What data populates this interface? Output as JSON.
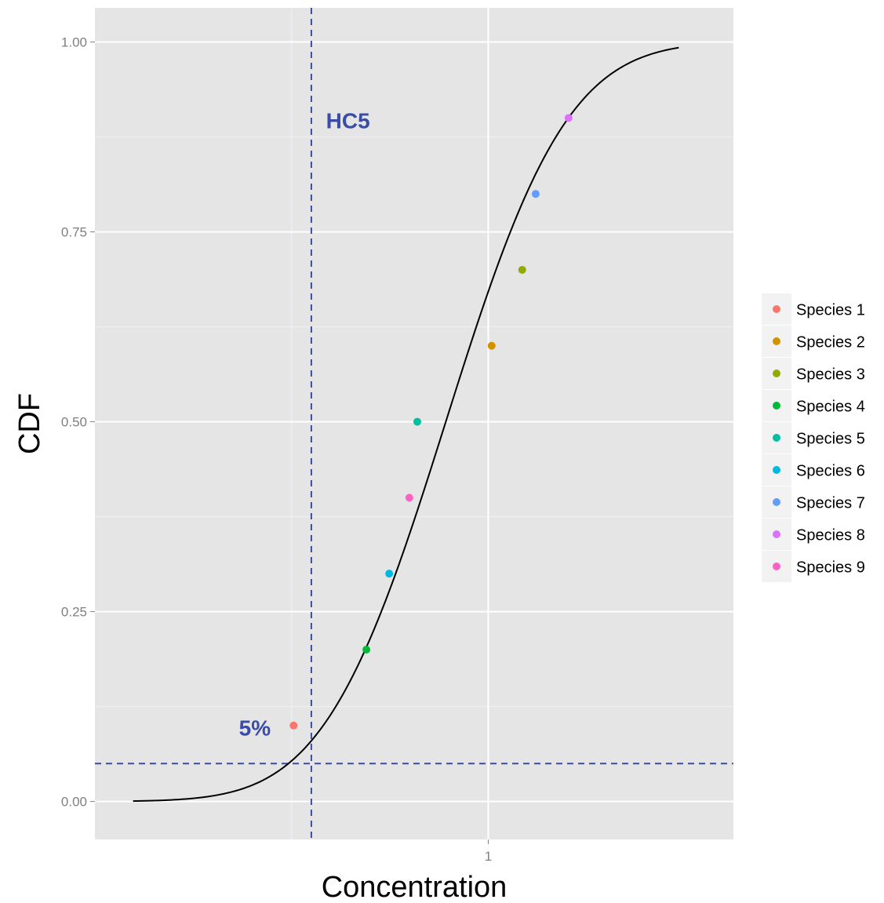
{
  "chart_data": {
    "type": "scatter",
    "title": "",
    "xlabel": "Concentration",
    "ylabel": "CDF",
    "x_scale": "log10",
    "xlim": [
      0.1,
      4.2
    ],
    "ylim": [
      -0.05,
      1.045
    ],
    "x_ticks": [
      {
        "value": 1,
        "label": "1"
      }
    ],
    "y_ticks": [
      {
        "value": 0.0,
        "label": "0.00"
      },
      {
        "value": 0.25,
        "label": "0.25"
      },
      {
        "value": 0.5,
        "label": "0.50"
      },
      {
        "value": 0.75,
        "label": "0.75"
      },
      {
        "value": 1.0,
        "label": "1.00"
      }
    ],
    "y_minor": [
      0.125,
      0.375,
      0.625,
      0.875
    ],
    "x_minor": [
      0.3162
    ],
    "grid": true,
    "background": "#e5e5e5",
    "legend_position": "right",
    "points": [
      {
        "name": "Species 1",
        "x": 0.32,
        "y": 0.1,
        "color": "#f8766d"
      },
      {
        "name": "Species 2",
        "x": 1.02,
        "y": 0.6,
        "color": "#d39200"
      },
      {
        "name": "Species 3",
        "x": 1.22,
        "y": 0.7,
        "color": "#93aa00"
      },
      {
        "name": "Species 4",
        "x": 0.49,
        "y": 0.2,
        "color": "#00ba38"
      },
      {
        "name": "Species 5",
        "x": 0.66,
        "y": 0.5,
        "color": "#00c19f"
      },
      {
        "name": "Species 6",
        "x": 0.56,
        "y": 0.3,
        "color": "#00b9e3"
      },
      {
        "name": "Species 7",
        "x": 1.32,
        "y": 0.8,
        "color": "#619cff"
      },
      {
        "name": "Species 8",
        "x": 1.6,
        "y": 0.9,
        "color": "#db72fb"
      },
      {
        "name": "Species 9",
        "x": 0.63,
        "y": 0.4,
        "color": "#ff61c3"
      }
    ],
    "curve": {
      "type": "lognormal-cdf",
      "median": 0.78,
      "sdlog": 0.56,
      "x_range": [
        0.125,
        3.05
      ],
      "color": "#000000"
    },
    "hc5": {
      "x": 0.355,
      "y": 0.05,
      "color": "#3b4ca6"
    },
    "annotations": [
      {
        "id": "hc5",
        "text": "HC5",
        "x": 0.44,
        "y": 0.897,
        "color": "#3b4ca6"
      },
      {
        "id": "five-percent",
        "text": "5%",
        "x": 0.255,
        "y": 0.097,
        "color": "#3b4ca6"
      }
    ]
  }
}
